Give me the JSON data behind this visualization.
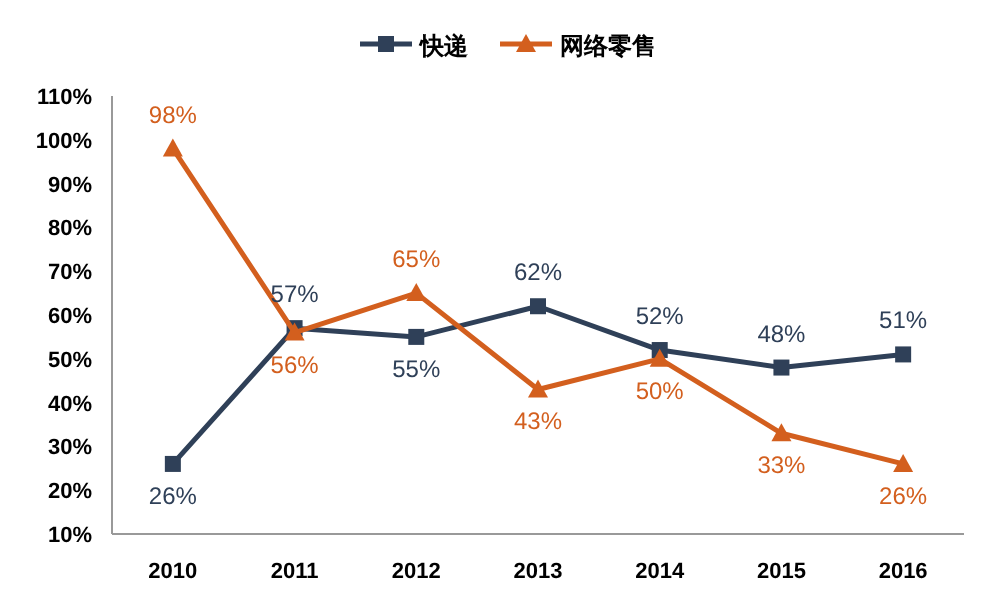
{
  "chart_data": {
    "type": "line",
    "categories": [
      "2010",
      "2011",
      "2012",
      "2013",
      "2014",
      "2015",
      "2016"
    ],
    "series": [
      {
        "name": "快递",
        "color": "#2f4058",
        "marker": "square",
        "values": [
          26,
          57,
          55,
          62,
          52,
          48,
          51
        ],
        "value_labels": [
          "26%",
          "57%",
          "55%",
          "62%",
          "52%",
          "48%",
          "51%"
        ]
      },
      {
        "name": "网络零售",
        "color": "#d35f1e",
        "marker": "triangle",
        "values": [
          98,
          56,
          65,
          43,
          50,
          33,
          26
        ],
        "value_labels": [
          "98%",
          "56%",
          "65%",
          "43%",
          "50%",
          "33%",
          "26%"
        ]
      }
    ],
    "ylim": [
      10,
      110
    ],
    "yticks": [
      {
        "value": 10,
        "label": "10%"
      },
      {
        "value": 20,
        "label": "20%"
      },
      {
        "value": 30,
        "label": "30%"
      },
      {
        "value": 40,
        "label": "40%"
      },
      {
        "value": 50,
        "label": "50%"
      },
      {
        "value": 60,
        "label": "60%"
      },
      {
        "value": 70,
        "label": "70%"
      },
      {
        "value": 80,
        "label": "80%"
      },
      {
        "value": 90,
        "label": "90%"
      },
      {
        "value": 100,
        "label": "100%"
      },
      {
        "value": 110,
        "label": "110%"
      }
    ],
    "legend": "top",
    "grid": false
  }
}
